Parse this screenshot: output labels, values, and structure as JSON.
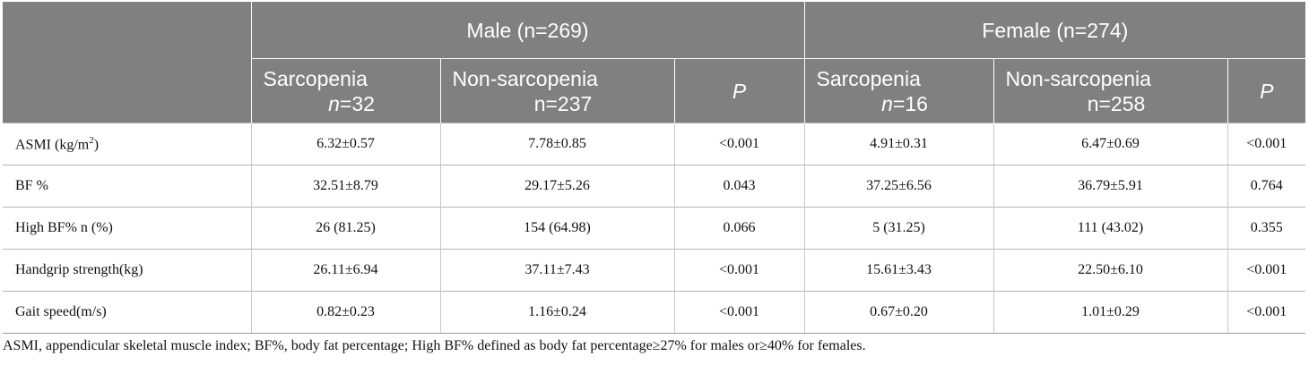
{
  "table": {
    "groups": [
      {
        "label": "Male (n=269)"
      },
      {
        "label": "Female (n=274)"
      }
    ],
    "subheaders": {
      "male_sarc": {
        "name": "Sarcopenia",
        "n_label": "n",
        "n_value": "=32"
      },
      "male_non": {
        "name": "Non-sarcopenia",
        "n_line": "n=237"
      },
      "male_p": "P",
      "female_sarc": {
        "name": "Sarcopenia",
        "n_label": "n",
        "n_value": "=16"
      },
      "female_non": {
        "name": "Non-sarcopenia",
        "n_line": "n=258"
      },
      "female_p": "P"
    },
    "rows": [
      {
        "label_main": "ASMI (kg/m",
        "label_sup": "2",
        "label_end": ")",
        "cells": [
          "6.32±0.57",
          "7.78±0.85",
          "<0.001",
          "4.91±0.31",
          "6.47±0.69",
          "<0.001"
        ]
      },
      {
        "label_main": "BF %",
        "label_sup": "",
        "label_end": "",
        "cells": [
          "32.51±8.79",
          "29.17±5.26",
          "0.043",
          "37.25±6.56",
          "36.79±5.91",
          "0.764"
        ]
      },
      {
        "label_main": "High BF% n (%)",
        "label_sup": "",
        "label_end": "",
        "cells": [
          "26 (81.25)",
          "154 (64.98)",
          "0.066",
          "5 (31.25)",
          "111 (43.02)",
          "0.355"
        ]
      },
      {
        "label_main": "Handgrip strength(kg)",
        "label_sup": "",
        "label_end": "",
        "cells": [
          "26.11±6.94",
          "37.11±7.43",
          "<0.001",
          "15.61±3.43",
          "22.50±6.10",
          "<0.001"
        ]
      },
      {
        "label_main": "Gait speed(m/s)",
        "label_sup": "",
        "label_end": "",
        "cells": [
          "0.82±0.23",
          "1.16±0.24",
          "<0.001",
          "0.67±0.20",
          "1.01±0.29",
          "<0.001"
        ]
      }
    ]
  },
  "footnote": "ASMI, appendicular skeletal muscle index; BF%, body fat percentage; High BF% defined as body fat percentage≥27% for males or≥40% for females."
}
